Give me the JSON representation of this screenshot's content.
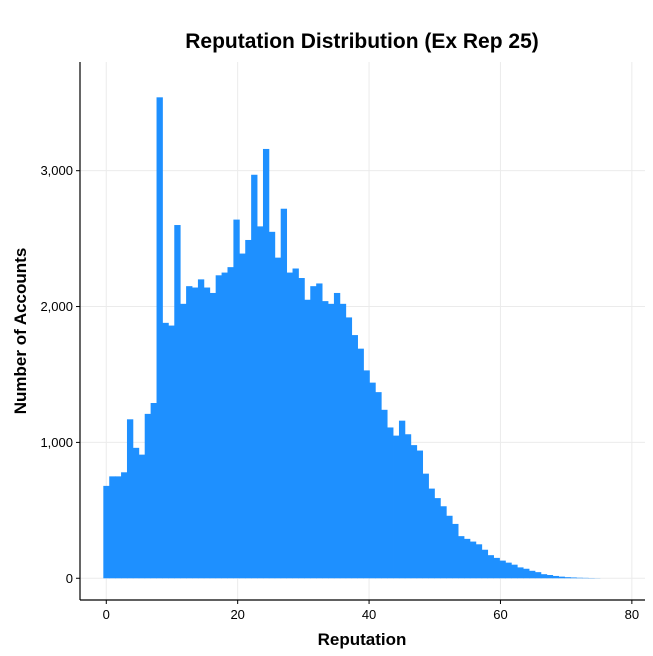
{
  "chart_data": {
    "type": "bar",
    "title": "Reputation Distribution (Ex Rep 25)",
    "xlabel": "Reputation",
    "ylabel": "Number of Accounts",
    "xlim": [
      -4,
      82
    ],
    "ylim": [
      -160,
      3800
    ],
    "x_ticks": [
      0,
      20,
      40,
      60,
      80
    ],
    "y_ticks": [
      0,
      1000,
      2000,
      3000
    ],
    "x_tick_labels": [
      "0",
      "20",
      "40",
      "60",
      "80"
    ],
    "y_tick_labels": [
      "0",
      "1,000",
      "2,000",
      "3,000"
    ],
    "grid": true,
    "bar_color": "#1e90ff",
    "bin_width": 0.9,
    "x": [
      0,
      0.9,
      1.8,
      2.7,
      3.6,
      4.5,
      5.4,
      6.3,
      7.2,
      8.1,
      9.0,
      9.9,
      10.8,
      11.7,
      12.6,
      13.5,
      14.4,
      15.3,
      16.2,
      17.1,
      18.0,
      18.9,
      19.8,
      20.7,
      21.6,
      22.5,
      23.4,
      24.3,
      25.2,
      26.1,
      27.0,
      27.9,
      28.8,
      29.7,
      30.6,
      31.5,
      32.4,
      33.3,
      34.2,
      35.1,
      36.0,
      36.9,
      37.8,
      38.7,
      39.6,
      40.5,
      41.4,
      42.3,
      43.2,
      44.1,
      45.0,
      45.9,
      46.8,
      47.7,
      48.6,
      49.5,
      50.4,
      51.3,
      52.2,
      53.1,
      54.0,
      54.9,
      55.8,
      56.7,
      57.6,
      58.5,
      59.4,
      60.3,
      61.2,
      62.1,
      63.0,
      63.9,
      64.8,
      65.7,
      66.6,
      67.5,
      68.4,
      69.3,
      70.2,
      71.1,
      72.0,
      72.9,
      73.8,
      74.7
    ],
    "values": [
      680,
      750,
      750,
      780,
      1170,
      960,
      910,
      1210,
      1290,
      3540,
      1880,
      1860,
      2600,
      2020,
      2150,
      2140,
      2200,
      2140,
      2100,
      2230,
      2250,
      2290,
      2640,
      2390,
      2490,
      2970,
      2590,
      3160,
      2550,
      2360,
      2720,
      2250,
      2280,
      2210,
      2050,
      2150,
      2170,
      2040,
      2020,
      2100,
      2020,
      1920,
      1790,
      1690,
      1530,
      1440,
      1370,
      1240,
      1110,
      1050,
      1160,
      1060,
      980,
      940,
      770,
      660,
      590,
      530,
      460,
      400,
      310,
      290,
      270,
      250,
      210,
      170,
      150,
      130,
      115,
      100,
      80,
      70,
      55,
      45,
      30,
      24,
      17,
      12,
      8,
      6,
      4,
      3,
      2,
      1
    ]
  }
}
